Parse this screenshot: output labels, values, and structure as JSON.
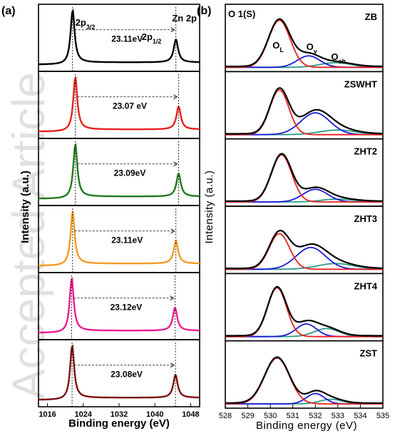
{
  "watermark": "Accepted Article",
  "chart_data": [
    {
      "type": "line",
      "panel": "(a)",
      "xlabel": "Binding energy (eV)",
      "ylabel": "Intensity (a.u.)",
      "xlim": [
        1014,
        1050
      ],
      "xticks": [
        1016,
        1024,
        1032,
        1040,
        1048
      ],
      "tick_labels": [
        "1016",
        "1024",
        "1032",
        "1040",
        "1048"
      ],
      "title": "Zn 2p",
      "peak_labels": {
        "p32": "3/2",
        "p12": "1/2",
        "prefix": "2p"
      },
      "series": [
        {
          "color": "#000000",
          "p32": 1021.6,
          "p12": 1044.7,
          "sep": "23.11eV"
        },
        {
          "color": "#e8201e",
          "p32": 1022.2,
          "p12": 1045.3,
          "sep": "23.07 eV"
        },
        {
          "color": "#1f7a1f",
          "p32": 1022.2,
          "p12": 1045.3,
          "sep": "23.09eV"
        },
        {
          "color": "#f59a23",
          "p32": 1021.6,
          "p12": 1044.7,
          "sep": "23.11eV"
        },
        {
          "color": "#ec1c8e",
          "p32": 1021.4,
          "p12": 1044.5,
          "sep": "23.12eV"
        },
        {
          "color": "#7a1010",
          "p32": 1021.5,
          "p12": 1044.6,
          "sep": "23.08eV"
        }
      ]
    },
    {
      "type": "line",
      "panel": "(b)",
      "title": "O 1(S)",
      "xlabel": "Binding energy (eV)",
      "ylabel": "Intensity (a.u.)",
      "xlim": [
        528,
        535
      ],
      "xticks": [
        528,
        529,
        530,
        531,
        532,
        533,
        534,
        535
      ],
      "tick_labels": [
        "528",
        "529",
        "530",
        "531",
        "532",
        "533",
        "534",
        "535"
      ],
      "component_labels": {
        "OL": "L",
        "Ov": "v",
        "Och": "ch",
        "base": "O"
      },
      "component_colors": {
        "OL": "#e8201e",
        "Ov": "#1a1ad8",
        "Och": "#2a9a8a",
        "envelope": "#000000"
      },
      "samples": [
        {
          "name": "ZB",
          "OL": [
            530.4,
            0.82,
            0.48
          ],
          "Ov": [
            531.7,
            0.2,
            0.5
          ],
          "Och": [
            532.9,
            0.08,
            0.7
          ]
        },
        {
          "name": "ZSWHT",
          "OL": [
            530.4,
            0.78,
            0.42
          ],
          "Ov": [
            532.0,
            0.38,
            0.65
          ],
          "Och": [
            533.0,
            0.08,
            0.8
          ]
        },
        {
          "name": "ZHT2",
          "OL": [
            530.5,
            0.82,
            0.45
          ],
          "Ov": [
            532.0,
            0.22,
            0.55
          ],
          "Och": [
            533.0,
            0.05,
            0.7
          ]
        },
        {
          "name": "ZHT3",
          "OL": [
            530.4,
            0.62,
            0.45
          ],
          "Ov": [
            531.8,
            0.38,
            0.65
          ],
          "Och": [
            532.9,
            0.1,
            0.8
          ]
        },
        {
          "name": "ZHT4",
          "OL": [
            530.3,
            0.85,
            0.42
          ],
          "Ov": [
            531.6,
            0.22,
            0.45
          ],
          "Och": [
            532.5,
            0.14,
            0.55
          ]
        },
        {
          "name": "ZST",
          "OL": [
            530.3,
            0.8,
            0.55
          ],
          "Ov": [
            532.0,
            0.18,
            0.4
          ],
          "Och": [
            532.7,
            0.08,
            0.5
          ]
        }
      ]
    }
  ]
}
